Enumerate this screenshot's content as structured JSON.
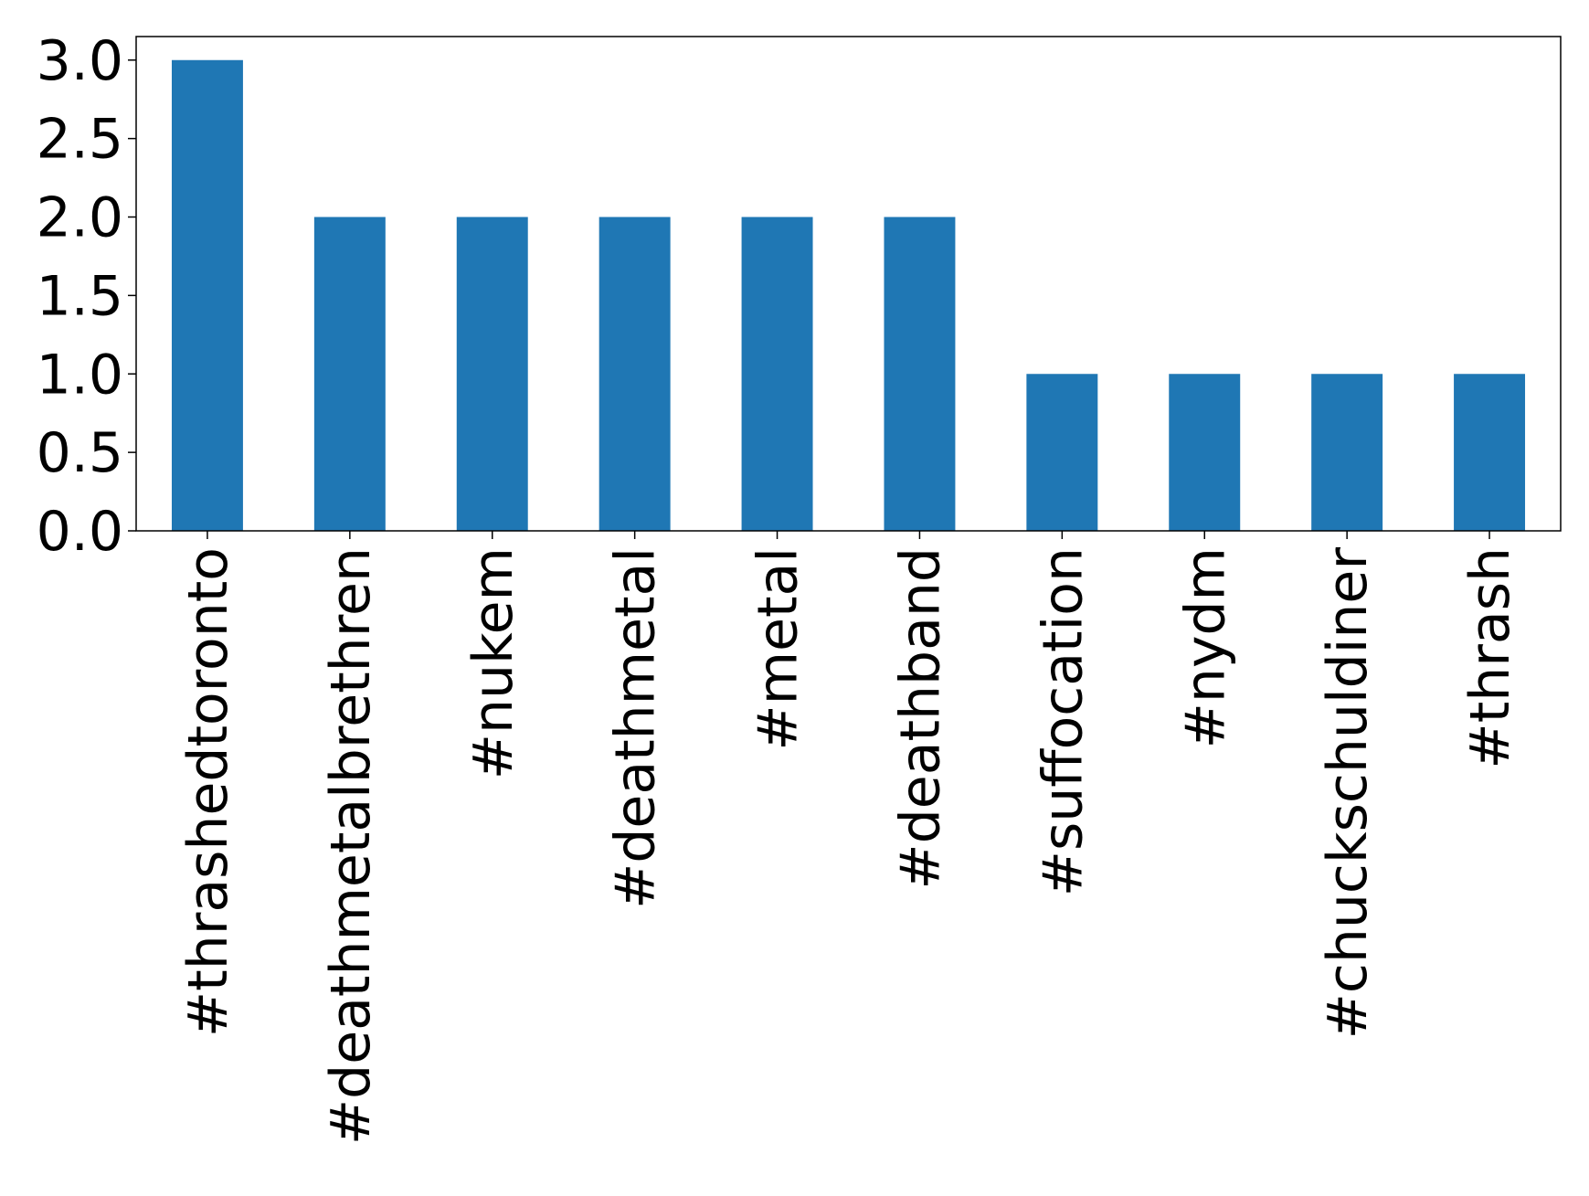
{
  "chart_data": {
    "type": "bar",
    "categories": [
      "#thrashedtoronto",
      "#deathmetalbrethren",
      "#nukem",
      "#deathmetal",
      "#metal",
      "#deathband",
      "#suffocation",
      "#nydm",
      "#chuckschuldiner",
      "#thrash"
    ],
    "values": [
      3,
      2,
      2,
      2,
      2,
      2,
      1,
      1,
      1,
      1
    ],
    "color": "#1f77b4",
    "ylim": [
      0,
      3.15
    ],
    "yticks": [
      {
        "value": 0,
        "label": "0.0"
      },
      {
        "value": 0.5,
        "label": "0.5"
      },
      {
        "value": 1,
        "label": "1.0"
      },
      {
        "value": 1.5,
        "label": "1.5"
      },
      {
        "value": 2,
        "label": "2.0"
      },
      {
        "value": 2.5,
        "label": "2.5"
      },
      {
        "value": 3,
        "label": "3.0"
      }
    ]
  }
}
